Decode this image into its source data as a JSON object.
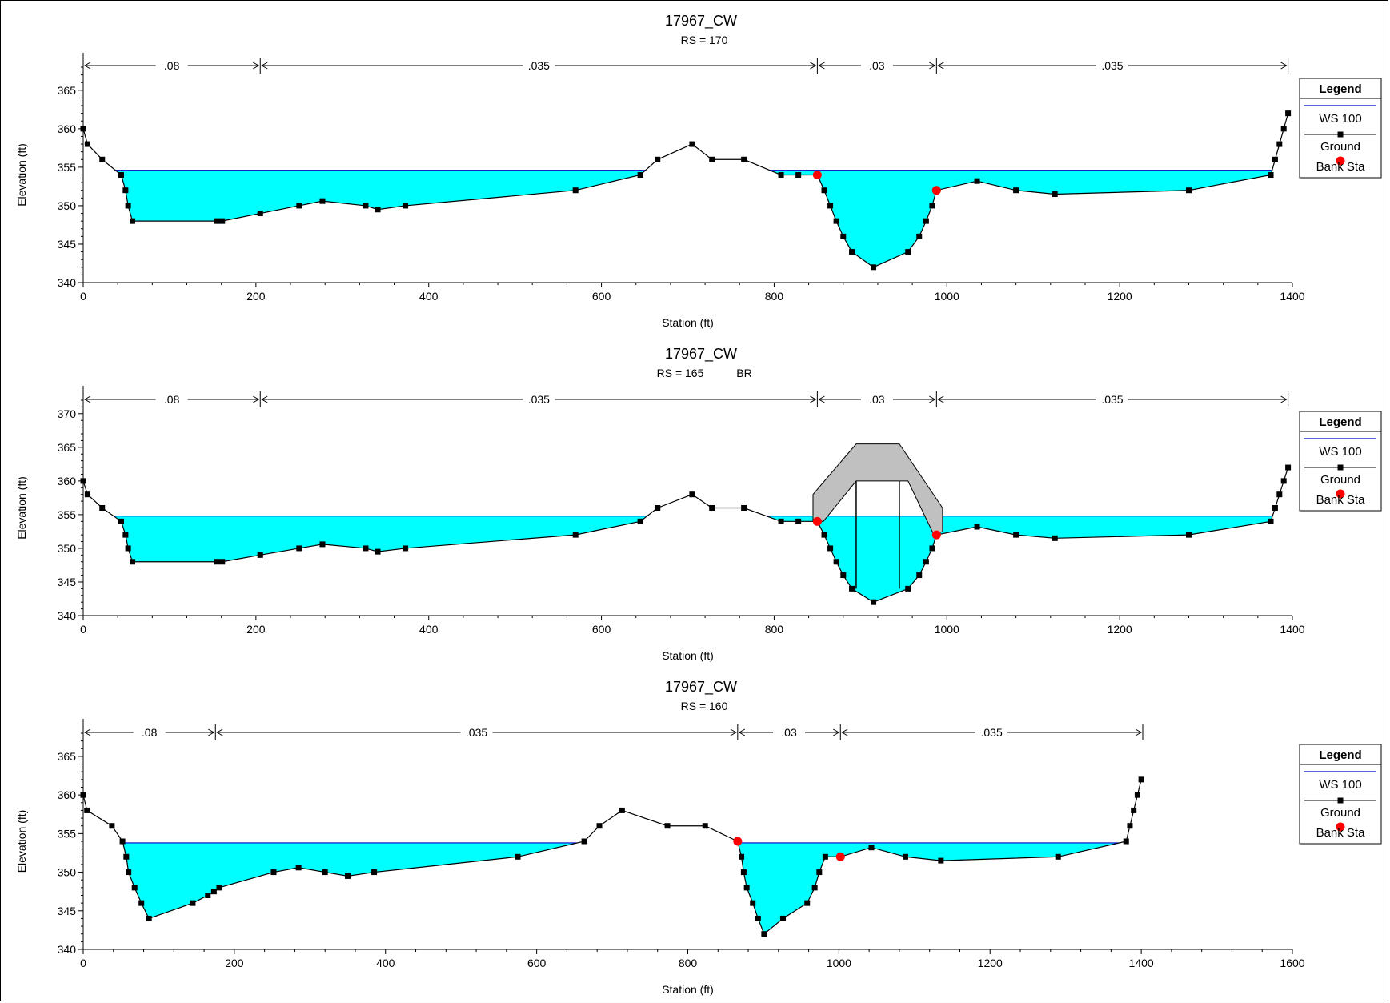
{
  "colors": {
    "water": "#00ffff",
    "ws_line": "#0000cc",
    "ground": "#000000",
    "bank": "#ff0000",
    "deck": "#c0c0c0"
  },
  "legend": {
    "title": "Legend",
    "items": [
      "WS 100",
      "Ground",
      "Bank Sta"
    ]
  },
  "chart_data": [
    {
      "type": "line",
      "title": "17967_CW",
      "subtitle": "RS = 170",
      "xlabel": "Station (ft)",
      "ylabel": "Elevation (ft)",
      "xlim": [
        0,
        1400
      ],
      "ylim": [
        340,
        368
      ],
      "xticks": [
        0,
        200,
        400,
        600,
        800,
        1000,
        1200,
        1400
      ],
      "yticks": [
        340,
        345,
        350,
        355,
        360,
        365
      ],
      "ws": 354.6,
      "ground": [
        [
          0,
          360
        ],
        [
          5,
          358
        ],
        [
          22,
          356
        ],
        [
          44,
          354
        ],
        [
          49,
          352
        ],
        [
          52,
          350
        ],
        [
          57,
          348
        ],
        [
          155,
          348
        ],
        [
          161,
          348
        ],
        [
          205,
          349
        ],
        [
          250,
          350
        ],
        [
          277,
          350.6
        ],
        [
          327,
          350
        ],
        [
          341,
          349.5
        ],
        [
          373,
          350
        ],
        [
          570,
          352
        ],
        [
          645,
          354
        ],
        [
          665,
          356
        ],
        [
          705,
          358
        ],
        [
          728,
          356
        ],
        [
          765,
          356
        ],
        [
          808,
          354
        ],
        [
          828,
          354
        ],
        [
          850,
          354
        ],
        [
          858,
          352
        ],
        [
          865,
          350
        ],
        [
          872,
          348
        ],
        [
          880,
          346
        ],
        [
          890,
          344
        ],
        [
          915,
          342
        ],
        [
          955,
          344
        ],
        [
          968,
          346
        ],
        [
          976,
          348
        ],
        [
          983,
          350
        ],
        [
          988,
          352
        ],
        [
          1035,
          353.2
        ],
        [
          1080,
          352
        ],
        [
          1125,
          351.5
        ],
        [
          1280,
          352
        ],
        [
          1375,
          354
        ],
        [
          1380,
          356
        ],
        [
          1385,
          358
        ],
        [
          1390,
          360
        ],
        [
          1395,
          362
        ]
      ],
      "bank_stations": [
        [
          850,
          354
        ],
        [
          988,
          352
        ]
      ],
      "ineffective_wet": [
        [
          [
            44,
            354
          ],
          [
            645,
            354
          ]
        ],
        [
          [
            808,
            354
          ],
          [
            1375,
            354
          ]
        ]
      ],
      "n_values": {
        "breaks": [
          0,
          205,
          850,
          988,
          1395
        ],
        "labels": [
          ".08",
          ".035",
          ".03",
          ".035"
        ]
      }
    },
    {
      "type": "line",
      "title": "17967_CW",
      "subtitle": "RS = 165",
      "subtitle2": "BR",
      "xlabel": "Station (ft)",
      "ylabel": "Elevation (ft)",
      "xlim": [
        0,
        1400
      ],
      "ylim": [
        340,
        372
      ],
      "xticks": [
        0,
        200,
        400,
        600,
        800,
        1000,
        1200,
        1400
      ],
      "yticks": [
        340,
        345,
        350,
        355,
        360,
        365,
        370
      ],
      "ws": 354.8,
      "ground": [
        [
          0,
          360
        ],
        [
          5,
          358
        ],
        [
          22,
          356
        ],
        [
          44,
          354
        ],
        [
          49,
          352
        ],
        [
          52,
          350
        ],
        [
          57,
          348
        ],
        [
          155,
          348
        ],
        [
          161,
          348
        ],
        [
          205,
          349
        ],
        [
          250,
          350
        ],
        [
          277,
          350.6
        ],
        [
          327,
          350
        ],
        [
          341,
          349.5
        ],
        [
          373,
          350
        ],
        [
          570,
          352
        ],
        [
          645,
          354
        ],
        [
          665,
          356
        ],
        [
          705,
          358
        ],
        [
          728,
          356
        ],
        [
          765,
          356
        ],
        [
          808,
          354
        ],
        [
          828,
          354
        ],
        [
          850,
          354
        ],
        [
          858,
          352
        ],
        [
          865,
          350
        ],
        [
          872,
          348
        ],
        [
          880,
          346
        ],
        [
          890,
          344
        ],
        [
          915,
          342
        ],
        [
          955,
          344
        ],
        [
          968,
          346
        ],
        [
          976,
          348
        ],
        [
          983,
          350
        ],
        [
          988,
          352
        ],
        [
          1035,
          353.2
        ],
        [
          1080,
          352
        ],
        [
          1125,
          351.5
        ],
        [
          1280,
          352
        ],
        [
          1375,
          354
        ],
        [
          1380,
          356
        ],
        [
          1385,
          358
        ],
        [
          1390,
          360
        ],
        [
          1395,
          362
        ]
      ],
      "bank_stations": [
        [
          850,
          354
        ],
        [
          988,
          352
        ]
      ],
      "deck_outer": [
        [
          845,
          358
        ],
        [
          895,
          365.5
        ],
        [
          945,
          365.5
        ],
        [
          995,
          356
        ],
        [
          995,
          352.5
        ],
        [
          985,
          352
        ],
        [
          955,
          360
        ],
        [
          895,
          360
        ],
        [
          857,
          354
        ],
        [
          845,
          354
        ]
      ],
      "piers": [
        [
          895,
          360,
          344
        ],
        [
          945,
          360,
          344
        ]
      ],
      "n_values": {
        "breaks": [
          0,
          205,
          850,
          988,
          1395
        ],
        "labels": [
          ".08",
          ".035",
          ".03",
          ".035"
        ]
      }
    },
    {
      "type": "line",
      "title": "17967_CW",
      "subtitle": "RS = 160",
      "xlabel": "Station (ft)",
      "ylabel": "Elevation (ft)",
      "xlim": [
        0,
        1600
      ],
      "ylim": [
        340,
        368
      ],
      "xticks": [
        0,
        200,
        400,
        600,
        800,
        1000,
        1200,
        1400,
        1600
      ],
      "yticks": [
        340,
        345,
        350,
        355,
        360,
        365
      ],
      "ws": 353.8,
      "ground": [
        [
          0,
          360
        ],
        [
          5,
          358
        ],
        [
          38,
          356
        ],
        [
          52,
          354
        ],
        [
          57,
          352
        ],
        [
          60,
          350
        ],
        [
          68,
          348
        ],
        [
          77,
          346
        ],
        [
          87,
          344
        ],
        [
          145,
          346
        ],
        [
          165,
          347
        ],
        [
          173,
          347.5
        ],
        [
          180,
          348
        ],
        [
          252,
          350
        ],
        [
          285,
          350.6
        ],
        [
          320,
          350
        ],
        [
          350,
          349.5
        ],
        [
          385,
          350
        ],
        [
          575,
          352
        ],
        [
          663,
          354
        ],
        [
          683,
          356
        ],
        [
          713,
          358
        ],
        [
          773,
          356
        ],
        [
          823,
          356
        ],
        [
          866,
          354
        ],
        [
          871,
          352
        ],
        [
          874,
          350
        ],
        [
          878,
          348
        ],
        [
          886,
          346
        ],
        [
          893,
          344
        ],
        [
          901,
          342
        ],
        [
          926,
          344
        ],
        [
          958,
          346
        ],
        [
          968,
          348
        ],
        [
          974,
          350
        ],
        [
          982,
          352
        ],
        [
          1002,
          352
        ],
        [
          1043,
          353.2
        ],
        [
          1088,
          352
        ],
        [
          1135,
          351.5
        ],
        [
          1290,
          352
        ],
        [
          1380,
          354
        ],
        [
          1385,
          356
        ],
        [
          1390,
          358
        ],
        [
          1395,
          360
        ],
        [
          1400,
          362
        ]
      ],
      "bank_stations": [
        [
          866,
          354
        ],
        [
          1002,
          352
        ]
      ],
      "n_values": {
        "breaks": [
          0,
          175,
          866,
          1002,
          1402
        ],
        "labels": [
          ".08",
          ".035",
          ".03",
          ".035"
        ]
      }
    }
  ]
}
